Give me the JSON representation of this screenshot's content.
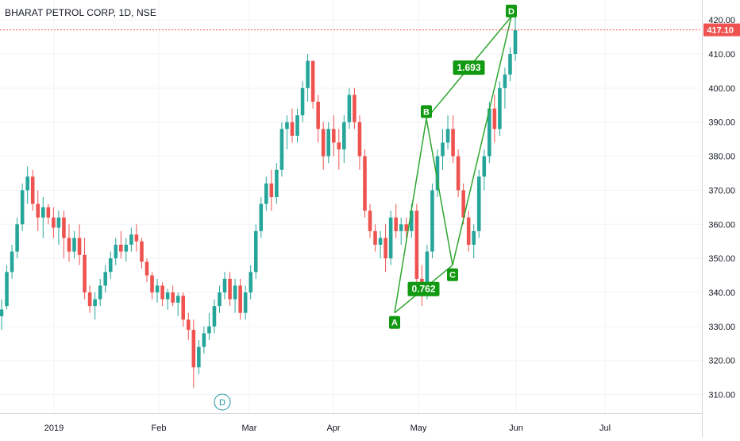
{
  "symbol_title": "BHARAT PETROL CORP, 1D, NSE",
  "colors": {
    "up": "#26a69a",
    "down": "#ef5350",
    "pattern": "#2ea62e",
    "pattern_label_bg": "#119911",
    "last_price_bg": "#ef5350",
    "grid": "#f0f3fa",
    "axis_text": "#131722",
    "dividend_marker": "#2196a3"
  },
  "chart_data": {
    "type": "candlestick",
    "ylim": [
      305,
      424
    ],
    "y_ticks": [
      "310.00",
      "320.00",
      "330.00",
      "340.00",
      "350.00",
      "360.00",
      "370.00",
      "380.00",
      "390.00",
      "400.00",
      "410.00",
      "420.00"
    ],
    "x_ticks": [
      "2019",
      "Feb",
      "Mar",
      "Apr",
      "May",
      "Jun",
      "Jul"
    ],
    "last_price": 417.1,
    "last_price_label": "417.10",
    "dividend_marker": {
      "label": "D",
      "date": "Feb 19"
    },
    "pattern_points": [
      {
        "label": "A",
        "value": 334
      },
      {
        "label": "B",
        "value": 391
      },
      {
        "label": "C",
        "value": 348
      },
      {
        "label": "D",
        "value": 421
      }
    ],
    "ratios": [
      "1.693",
      "0.762"
    ],
    "candles_ohlc": [
      [
        333,
        338,
        329,
        335
      ],
      [
        336,
        348,
        335,
        346
      ],
      [
        346,
        354,
        344,
        352
      ],
      [
        352,
        362,
        350,
        360
      ],
      [
        360,
        372,
        358,
        370
      ],
      [
        370,
        377,
        366,
        374
      ],
      [
        374,
        376,
        364,
        366
      ],
      [
        366,
        370,
        358,
        362
      ],
      [
        362,
        368,
        356,
        365
      ],
      [
        365,
        366,
        360,
        362
      ],
      [
        362,
        365,
        356,
        359
      ],
      [
        359,
        364,
        354,
        362
      ],
      [
        362,
        364,
        350,
        356
      ],
      [
        356,
        360,
        349,
        352
      ],
      [
        352,
        358,
        350,
        356
      ],
      [
        356,
        360,
        348,
        351
      ],
      [
        351,
        356,
        338,
        340
      ],
      [
        340,
        342,
        334,
        336
      ],
      [
        336,
        340,
        332,
        338
      ],
      [
        338,
        344,
        336,
        342
      ],
      [
        342,
        348,
        340,
        346
      ],
      [
        346,
        352,
        344,
        350
      ],
      [
        350,
        356,
        348,
        354
      ],
      [
        354,
        358,
        350,
        352
      ],
      [
        352,
        356,
        349,
        354
      ],
      [
        354,
        359,
        352,
        357
      ],
      [
        357,
        360,
        352,
        355
      ],
      [
        355,
        356,
        347,
        349
      ],
      [
        349,
        350,
        343,
        345
      ],
      [
        345,
        346,
        338,
        340
      ],
      [
        340,
        344,
        337,
        342
      ],
      [
        342,
        343,
        336,
        338
      ],
      [
        338,
        341,
        335,
        340
      ],
      [
        340,
        342,
        336,
        337
      ],
      [
        337,
        340,
        333,
        339
      ],
      [
        339,
        340,
        330,
        332
      ],
      [
        332,
        334,
        326,
        329
      ],
      [
        329,
        332,
        312,
        318
      ],
      [
        318,
        326,
        316,
        324
      ],
      [
        324,
        330,
        322,
        328
      ],
      [
        328,
        334,
        326,
        330
      ],
      [
        330,
        338,
        328,
        336
      ],
      [
        336,
        342,
        334,
        340
      ],
      [
        340,
        346,
        338,
        344
      ],
      [
        344,
        346,
        336,
        338
      ],
      [
        338,
        344,
        334,
        342
      ],
      [
        342,
        344,
        332,
        334
      ],
      [
        334,
        342,
        332,
        340
      ],
      [
        340,
        348,
        338,
        346
      ],
      [
        346,
        360,
        344,
        358
      ],
      [
        358,
        368,
        356,
        366
      ],
      [
        366,
        374,
        364,
        372
      ],
      [
        372,
        376,
        364,
        368
      ],
      [
        368,
        378,
        366,
        376
      ],
      [
        376,
        390,
        374,
        388
      ],
      [
        388,
        392,
        382,
        390
      ],
      [
        390,
        394,
        384,
        386
      ],
      [
        386,
        394,
        384,
        392
      ],
      [
        392,
        402,
        390,
        400
      ],
      [
        400,
        410,
        396,
        408
      ],
      [
        408,
        408,
        394,
        396
      ],
      [
        396,
        398,
        384,
        388
      ],
      [
        388,
        390,
        376,
        380
      ],
      [
        380,
        390,
        378,
        388
      ],
      [
        388,
        392,
        380,
        384
      ],
      [
        384,
        388,
        376,
        382
      ],
      [
        382,
        392,
        378,
        390
      ],
      [
        390,
        400,
        388,
        398
      ],
      [
        398,
        400,
        388,
        390
      ],
      [
        390,
        392,
        376,
        380
      ],
      [
        380,
        382,
        362,
        364
      ],
      [
        364,
        366,
        356,
        358
      ],
      [
        358,
        360,
        352,
        354
      ],
      [
        354,
        358,
        350,
        356
      ],
      [
        356,
        360,
        346,
        350
      ],
      [
        350,
        364,
        348,
        362
      ],
      [
        362,
        366,
        356,
        358
      ],
      [
        358,
        362,
        354,
        360
      ],
      [
        360,
        362,
        356,
        358
      ],
      [
        358,
        366,
        356,
        364
      ],
      [
        364,
        366,
        342,
        344
      ],
      [
        344,
        348,
        336,
        340
      ],
      [
        340,
        354,
        338,
        352
      ],
      [
        352,
        372,
        350,
        370
      ],
      [
        370,
        382,
        368,
        380
      ],
      [
        380,
        388,
        376,
        384
      ],
      [
        384,
        392,
        382,
        388
      ],
      [
        388,
        392,
        378,
        380
      ],
      [
        380,
        382,
        368,
        370
      ],
      [
        370,
        372,
        360,
        362
      ],
      [
        362,
        364,
        352,
        354
      ],
      [
        354,
        360,
        350,
        358
      ],
      [
        358,
        376,
        356,
        374
      ],
      [
        374,
        382,
        370,
        380
      ],
      [
        380,
        396,
        378,
        394
      ],
      [
        394,
        398,
        384,
        388
      ],
      [
        388,
        402,
        386,
        400
      ],
      [
        400,
        406,
        394,
        404
      ],
      [
        404,
        412,
        402,
        410
      ],
      [
        410,
        421,
        408,
        417
      ]
    ]
  }
}
